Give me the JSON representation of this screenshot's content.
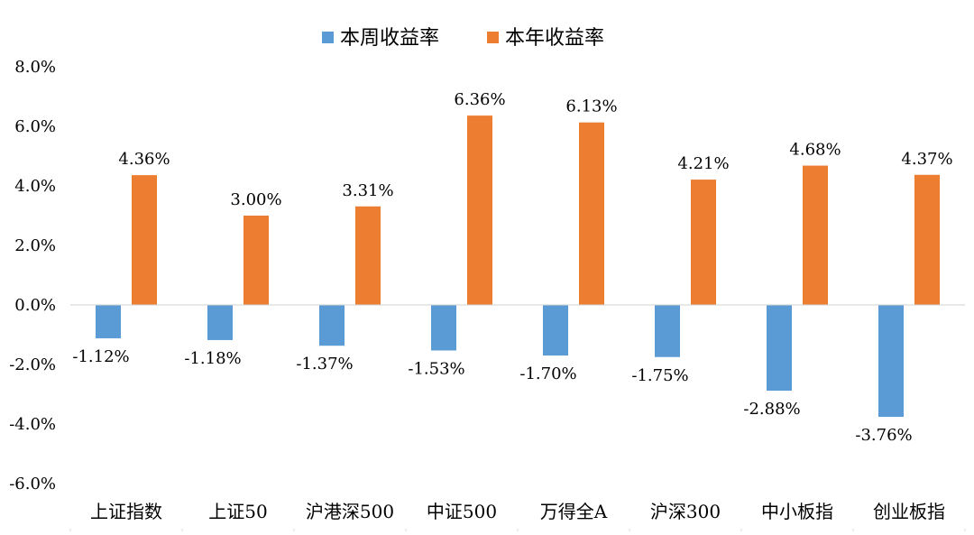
{
  "chart_data": {
    "type": "bar",
    "categories": [
      "上证指数",
      "上证50",
      "沪港深500",
      "中证500",
      "万得全A",
      "沪深300",
      "中小板指",
      "创业板指"
    ],
    "series": [
      {
        "name": "本周收益率",
        "color": "#5B9BD5",
        "values": [
          -1.12,
          -1.18,
          -1.37,
          -1.53,
          -1.7,
          -1.75,
          -2.88,
          -3.76
        ],
        "labels": [
          "-1.12%",
          "-1.18%",
          "-1.37%",
          "-1.53%",
          "-1.70%",
          "-1.75%",
          "-2.88%",
          "-3.76%"
        ]
      },
      {
        "name": "本年收益率",
        "color": "#ED7D31",
        "values": [
          4.36,
          3.0,
          3.31,
          6.36,
          6.13,
          4.21,
          4.68,
          4.37
        ],
        "labels": [
          "4.36%",
          "3.00%",
          "3.31%",
          "6.36%",
          "6.13%",
          "4.21%",
          "4.68%",
          "4.37%"
        ]
      }
    ],
    "y_ticks": [
      8,
      6,
      4,
      2,
      0,
      -2,
      -4,
      -6
    ],
    "y_tick_labels": [
      "8.0%",
      "6.0%",
      "4.0%",
      "2.0%",
      "0.0%",
      "-2.0%",
      "-4.0%",
      "-6.0%"
    ],
    "ylim": [
      -6,
      8
    ],
    "grid": false,
    "legend_position": "top-center",
    "title": "",
    "xlabel": "",
    "ylabel": ""
  }
}
